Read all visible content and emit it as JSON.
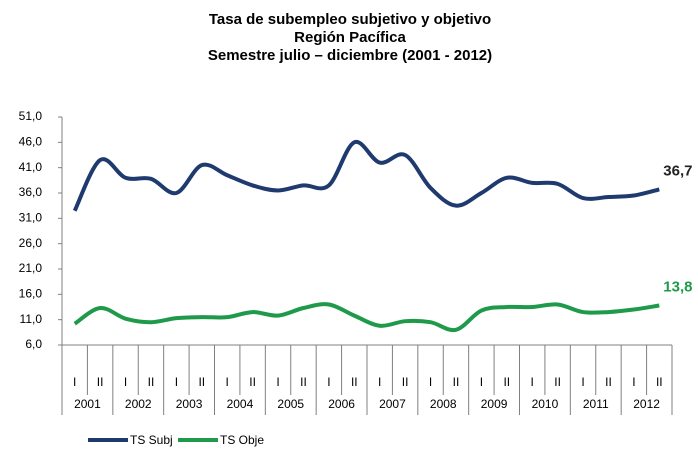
{
  "chart_data": {
    "type": "line",
    "title": [
      "Tasa de subempleo subjetivo y objetivo",
      "Región Pacífica",
      "Semestre julio – diciembre (2001 - 2012)"
    ],
    "categories": [
      "I",
      "II",
      "I",
      "II",
      "I",
      "II",
      "I",
      "II",
      "I",
      "II",
      "I",
      "II",
      "I",
      "II",
      "I",
      "II",
      "I",
      "II",
      "I",
      "II",
      "I",
      "II",
      "I",
      "II"
    ],
    "category_groups": [
      "2001",
      "2002",
      "2003",
      "2004",
      "2005",
      "2006",
      "2007",
      "2008",
      "2009",
      "2010",
      "2011",
      "2012"
    ],
    "series": [
      {
        "name": "TS Subj",
        "color": "#1f3a6e",
        "values": [
          32.5,
          42.5,
          39,
          38.8,
          36,
          41.5,
          39.5,
          37.5,
          36.5,
          37.5,
          37.5,
          46,
          42,
          43.5,
          37,
          33.5,
          36,
          39,
          38,
          37.8,
          35,
          35.2,
          35.5,
          36.7
        ],
        "value_labels": [
          null,
          null,
          null,
          null,
          null,
          null,
          null,
          null,
          null,
          null,
          null,
          null,
          null,
          null,
          null,
          null,
          null,
          null,
          null,
          null,
          null,
          null,
          null,
          "36,7"
        ]
      },
      {
        "name": "TS Obje",
        "color": "#1e9a4a",
        "values": [
          10.2,
          13.3,
          11.2,
          10.5,
          11.3,
          11.5,
          11.5,
          12.5,
          11.8,
          13.3,
          14,
          11.8,
          9.8,
          10.7,
          10.5,
          9,
          12.8,
          13.5,
          13.5,
          14,
          12.5,
          12.5,
          13,
          13.8
        ],
        "value_labels": [
          null,
          null,
          null,
          null,
          null,
          null,
          null,
          null,
          null,
          null,
          null,
          null,
          null,
          null,
          null,
          null,
          null,
          null,
          null,
          null,
          null,
          null,
          null,
          "13,8"
        ]
      }
    ],
    "ylim": [
      6,
      51
    ],
    "yticks": [
      {
        "value": 6,
        "label": "6,0"
      },
      {
        "value": 11,
        "label": "11,0"
      },
      {
        "value": 16,
        "label": "16,0"
      },
      {
        "value": 21,
        "label": "21,0"
      },
      {
        "value": 26,
        "label": "26,0"
      },
      {
        "value": 31,
        "label": "31,0"
      },
      {
        "value": 36,
        "label": "36,0"
      },
      {
        "value": 41,
        "label": "41,0"
      },
      {
        "value": 46,
        "label": "46,0"
      },
      {
        "value": 51,
        "label": "51,0"
      }
    ],
    "grid": false,
    "legend": "bottom"
  }
}
